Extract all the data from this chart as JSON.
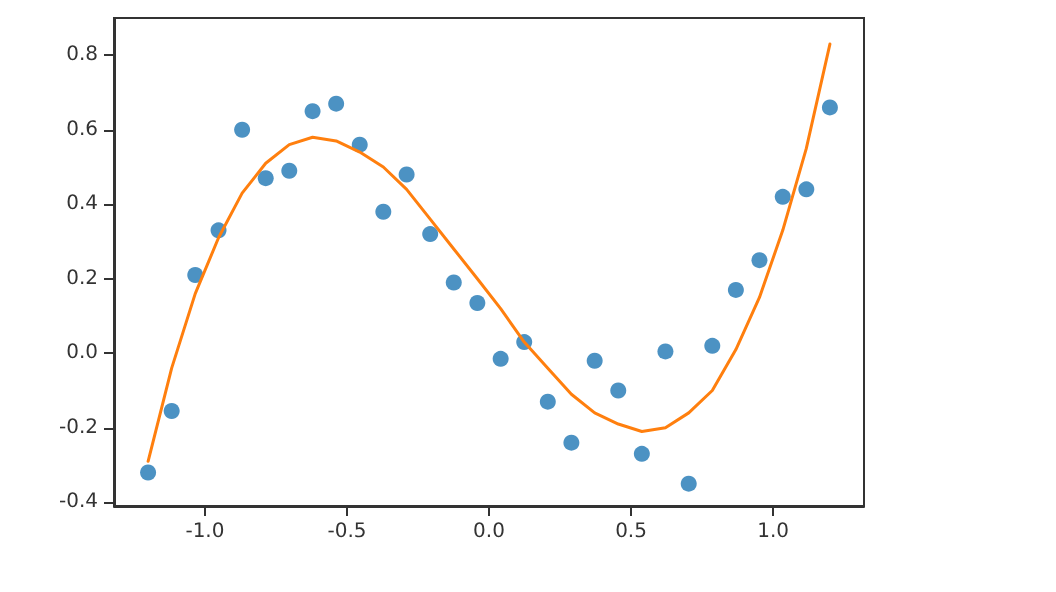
{
  "chart_data": {
    "type": "scatter",
    "xlim": [
      -1.32,
      1.32
    ],
    "ylim": [
      -0.41,
      0.9
    ],
    "xticks": [
      {
        "value": -1,
        "label": "-1.0"
      },
      {
        "value": -0.5,
        "label": "-0.5"
      },
      {
        "value": 0,
        "label": "0.0"
      },
      {
        "value": 0.5,
        "label": "0.5"
      },
      {
        "value": 1,
        "label": "1.0"
      }
    ],
    "yticks": [
      {
        "value": -0.4,
        "label": "-0.4"
      },
      {
        "value": -0.2,
        "label": "-0.2"
      },
      {
        "value": 0,
        "label": "0.0"
      },
      {
        "value": 0.2,
        "label": "0.2"
      },
      {
        "value": 0.4,
        "label": "0.4"
      },
      {
        "value": 0.6,
        "label": "0.6"
      },
      {
        "value": 0.8,
        "label": "0.8"
      }
    ],
    "grid": false,
    "x": [
      -1.2,
      -1.117,
      -1.034,
      -0.952,
      -0.869,
      -0.786,
      -0.703,
      -0.621,
      -0.538,
      -0.455,
      -0.372,
      -0.29,
      -0.207,
      -0.124,
      -0.041,
      0.041,
      0.124,
      0.207,
      0.29,
      0.372,
      0.455,
      0.538,
      0.621,
      0.703,
      0.786,
      0.869,
      0.952,
      1.034,
      1.117,
      1.2
    ],
    "series": [
      {
        "color": "#1f77b4",
        "marker": "circle",
        "values": [
          -0.32,
          -0.155,
          0.21,
          0.33,
          0.6,
          0.47,
          0.49,
          0.65,
          0.67,
          0.56,
          0.38,
          0.48,
          0.32,
          0.19,
          0.135,
          -0.015,
          0.03,
          -0.13,
          -0.24,
          -0.02,
          -0.1,
          -0.27,
          0.005,
          -0.35,
          0.02,
          0.17,
          0.25,
          0.42,
          0.44,
          0.66
        ]
      },
      {
        "type": "line",
        "color": "#ff7f0e",
        "marker": "none",
        "line_style": "solid",
        "values": [
          -0.29,
          -0.04,
          0.16,
          0.31,
          0.43,
          0.51,
          0.56,
          0.58,
          0.57,
          0.54,
          0.5,
          0.44,
          0.36,
          0.28,
          0.2,
          0.12,
          0.03,
          -0.04,
          -0.11,
          -0.16,
          -0.19,
          -0.21,
          -0.2,
          -0.16,
          -0.1,
          0.01,
          0.15,
          0.33,
          0.55,
          0.83
        ]
      }
    ]
  }
}
